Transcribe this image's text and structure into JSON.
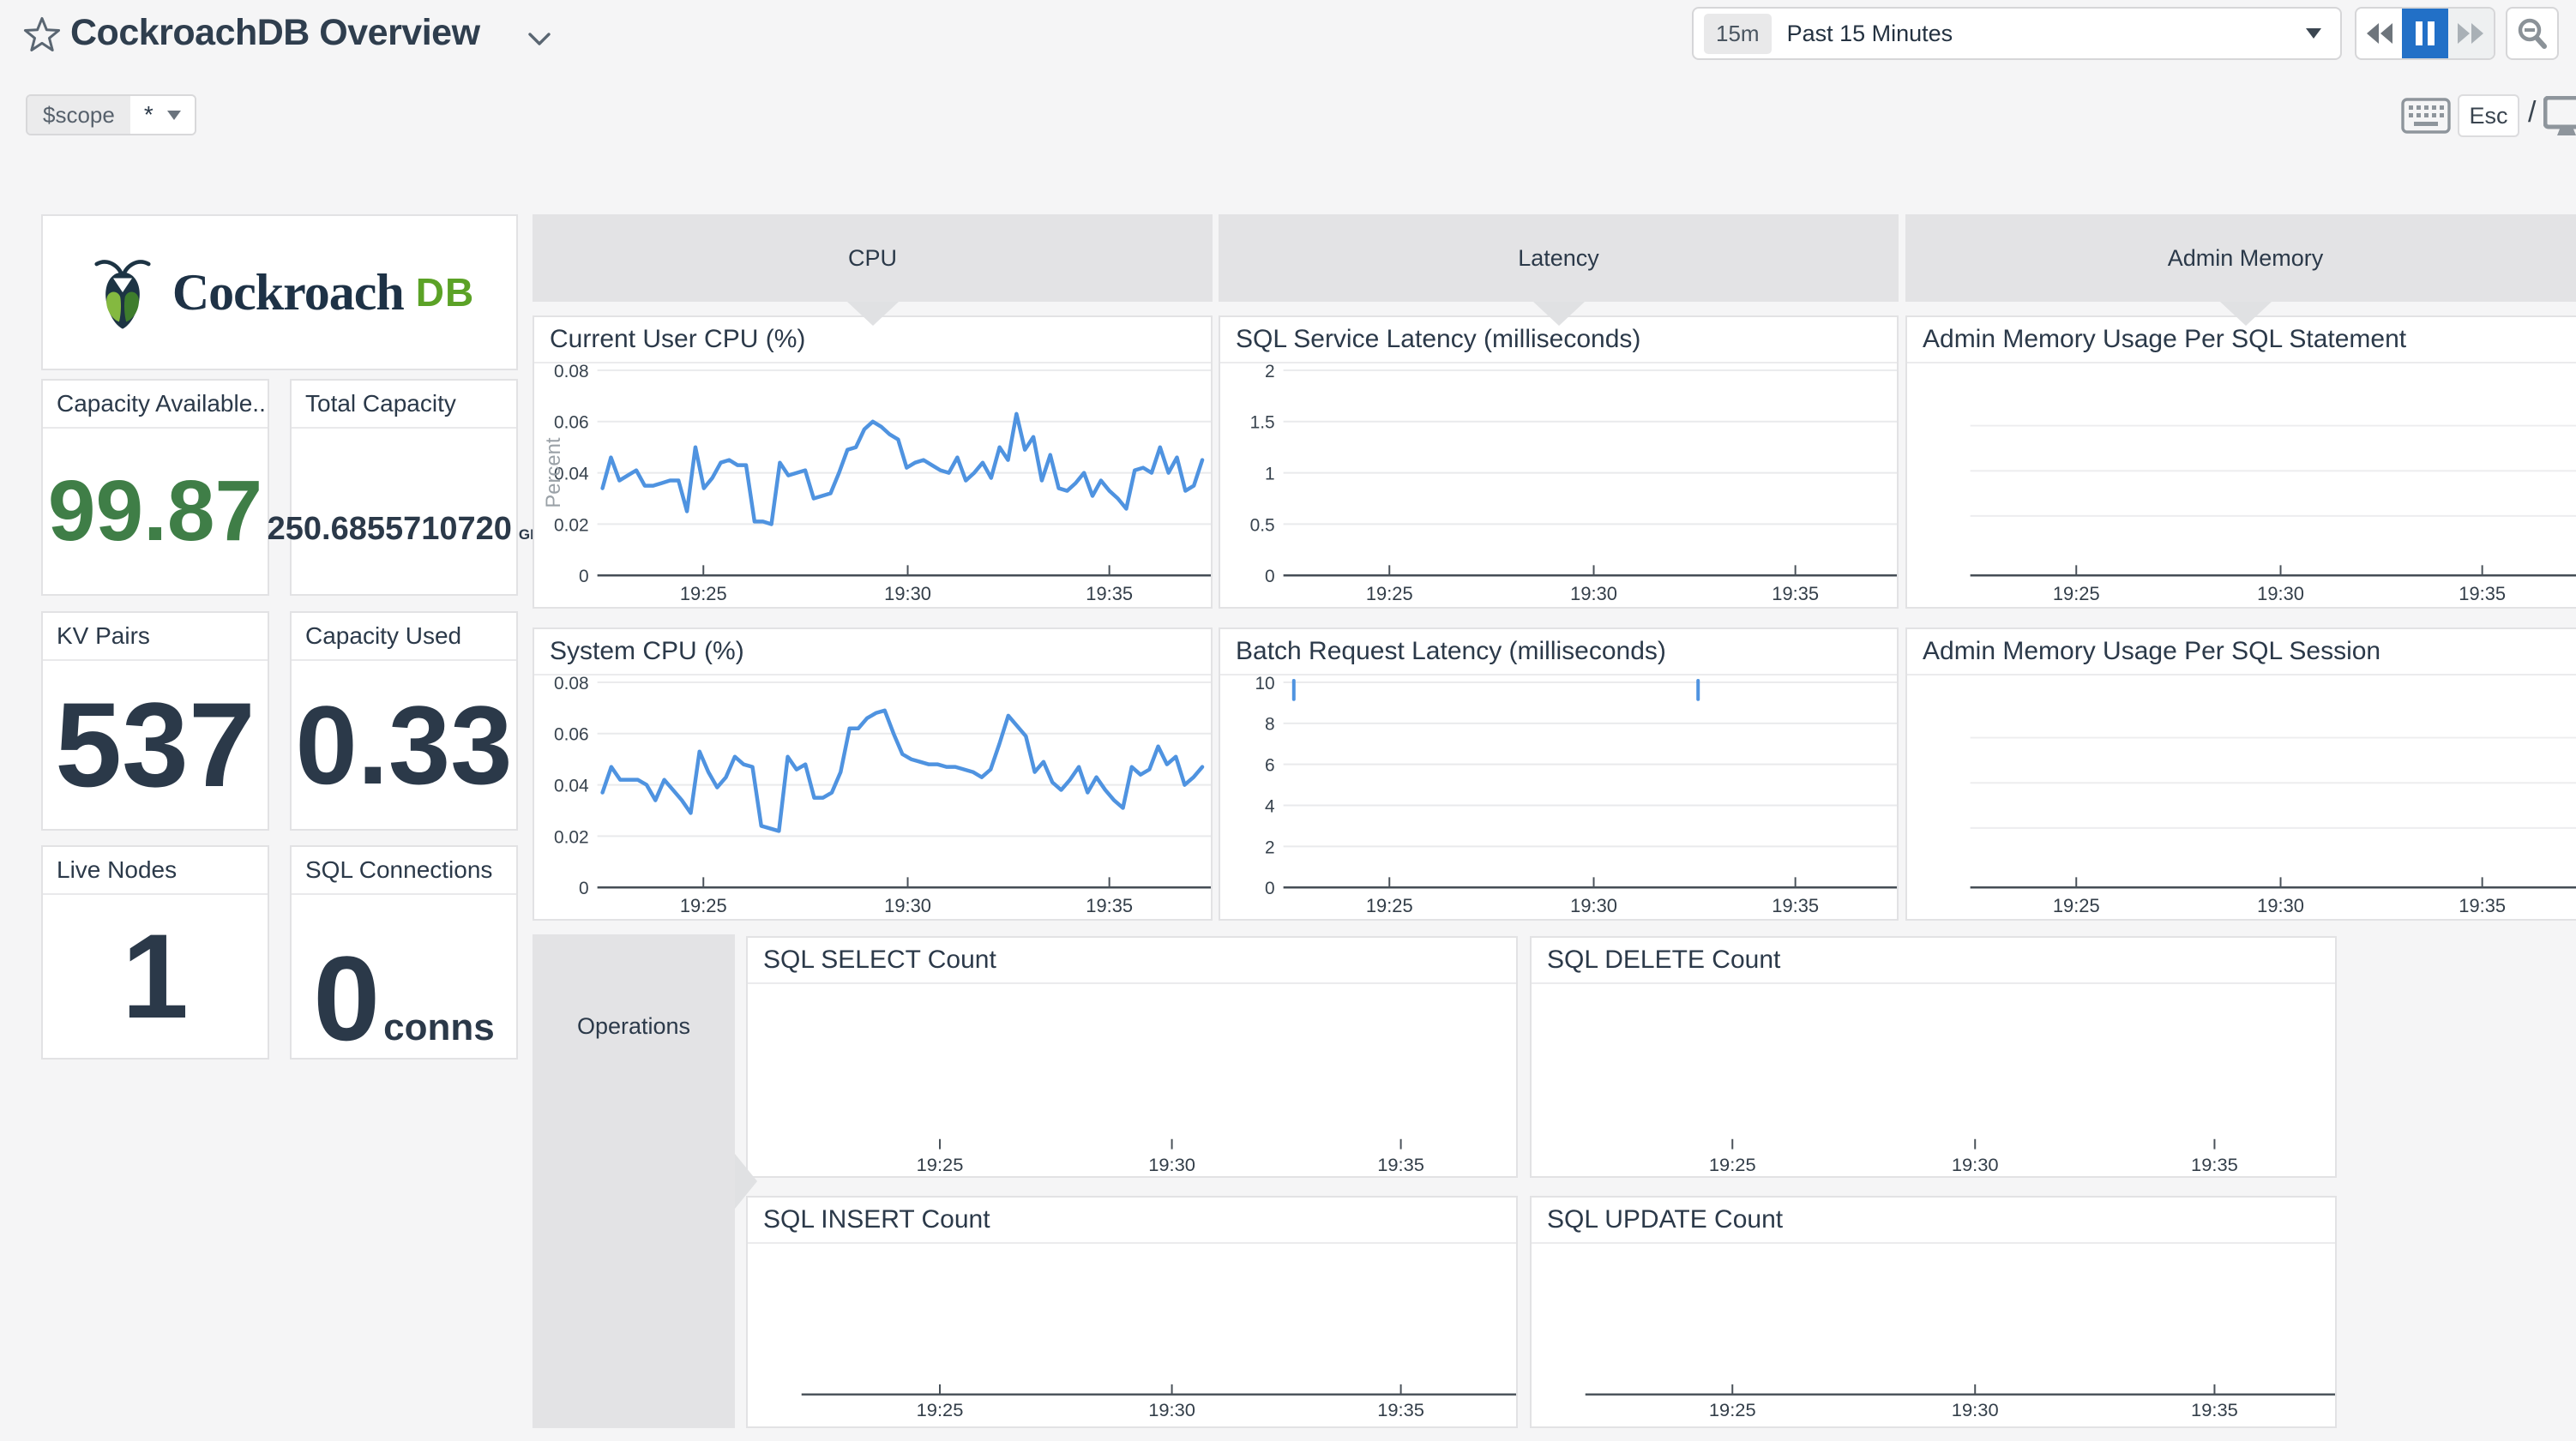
{
  "header": {
    "title": "CockroachDB Overview",
    "time": {
      "badge": "15m",
      "label": "Past 15 Minutes"
    },
    "scope": {
      "key": "$scope",
      "value": "*"
    },
    "esc": "Esc",
    "slash": "/"
  },
  "branding": {
    "word": "Cockroach",
    "suffix": "DB"
  },
  "colors": {
    "accent_blue": "#4f93e0",
    "active_button_blue": "#2270c7",
    "stat_green": "#3f7e47",
    "logo_green": "#5ba226",
    "navy_text": "#2b3949",
    "group_header_gray": "#e3e3e5"
  },
  "groups": {
    "cpu": "CPU",
    "latency": "Latency",
    "admin_memory": "Admin Memory",
    "operations": "Operations"
  },
  "stats": [
    {
      "label": "Capacity Available...",
      "value": "99.87",
      "unit": ""
    },
    {
      "label": "Total Capacity",
      "value": "250.6855710720",
      "unit": "GB"
    },
    {
      "label": "KV Pairs",
      "value": "537",
      "unit": ""
    },
    {
      "label": "Capacity Used",
      "value": "0.33",
      "unit": ""
    },
    {
      "label": "Live Nodes",
      "value": "1",
      "unit": ""
    },
    {
      "label": "SQL Connections",
      "value": "0",
      "unit": "conns"
    }
  ],
  "chart_data": [
    {
      "id": "current-user-cpu",
      "type": "line",
      "title": "Current User CPU (%)",
      "ylabel": "Percent",
      "ylim": [
        0,
        0.08
      ],
      "y_ticks": [
        "0.08",
        "0.06",
        "0.04",
        "0.02",
        "0"
      ],
      "x_ticks": [
        "19:25",
        "19:30",
        "19:35"
      ],
      "grid": true,
      "legend": "none",
      "series": [
        {
          "name": "user-cpu",
          "values": [
            0.034,
            0.046,
            0.037,
            0.039,
            0.041,
            0.035,
            0.035,
            0.036,
            0.037,
            0.037,
            0.025,
            0.05,
            0.034,
            0.038,
            0.044,
            0.045,
            0.043,
            0.043,
            0.021,
            0.021,
            0.02,
            0.044,
            0.039,
            0.04,
            0.041,
            0.03,
            0.031,
            0.032,
            0.04,
            0.049,
            0.05,
            0.057,
            0.06,
            0.058,
            0.055,
            0.053,
            0.042,
            0.044,
            0.045,
            0.043,
            0.041,
            0.04,
            0.046,
            0.037,
            0.04,
            0.044,
            0.038,
            0.05,
            0.045,
            0.063,
            0.049,
            0.054,
            0.037,
            0.047,
            0.034,
            0.033,
            0.036,
            0.04,
            0.031,
            0.037,
            0.033,
            0.03,
            0.026,
            0.041,
            0.042,
            0.04,
            0.05,
            0.04,
            0.046,
            0.033,
            0.035,
            0.045
          ]
        }
      ]
    },
    {
      "id": "system-cpu",
      "type": "line",
      "title": "System CPU (%)",
      "ylim": [
        0,
        0.08
      ],
      "y_ticks": [
        "0.08",
        "0.06",
        "0.04",
        "0.02",
        "0"
      ],
      "x_ticks": [
        "19:25",
        "19:30",
        "19:35"
      ],
      "grid": true,
      "legend": "none",
      "series": [
        {
          "name": "system-cpu",
          "values": [
            0.037,
            0.047,
            0.042,
            0.042,
            0.042,
            0.04,
            0.034,
            0.042,
            0.038,
            0.034,
            0.029,
            0.053,
            0.045,
            0.039,
            0.043,
            0.051,
            0.048,
            0.047,
            0.024,
            0.023,
            0.022,
            0.051,
            0.046,
            0.048,
            0.035,
            0.035,
            0.037,
            0.045,
            0.062,
            0.062,
            0.066,
            0.068,
            0.069,
            0.06,
            0.052,
            0.05,
            0.049,
            0.048,
            0.048,
            0.047,
            0.047,
            0.046,
            0.045,
            0.043,
            0.046,
            0.056,
            0.067,
            0.063,
            0.059,
            0.045,
            0.049,
            0.041,
            0.038,
            0.042,
            0.047,
            0.037,
            0.043,
            0.038,
            0.034,
            0.031,
            0.047,
            0.044,
            0.046,
            0.055,
            0.048,
            0.051,
            0.04,
            0.043,
            0.047
          ]
        }
      ]
    },
    {
      "id": "sql-service-latency",
      "type": "line",
      "title": "SQL Service Latency (milliseconds)",
      "ylim": [
        0,
        2
      ],
      "y_ticks": [
        "2",
        "1.5",
        "1",
        "0.5",
        "0"
      ],
      "x_ticks": [
        "19:25",
        "19:30",
        "19:35"
      ],
      "grid": true,
      "legend": "none",
      "series": []
    },
    {
      "id": "batch-request-latency",
      "type": "line",
      "title": "Batch Request Latency (milliseconds)",
      "ylim": [
        0,
        10
      ],
      "y_ticks": [
        "10",
        "8",
        "6",
        "4",
        "2",
        "0"
      ],
      "x_ticks": [
        "19:25",
        "19:30",
        "19:35"
      ],
      "grid": true,
      "legend": "none",
      "series": [],
      "marks": [
        {
          "x_frac": 0.017,
          "value": 10
        },
        {
          "x_frac": 0.676,
          "value": 10
        }
      ]
    },
    {
      "id": "admin-memory-per-sql-statement",
      "type": "line",
      "title": "Admin Memory Usage Per SQL Statement",
      "y_ticks": [],
      "x_ticks": [
        "19:25",
        "19:30",
        "19:35"
      ],
      "grid": true,
      "legend": "none",
      "series": []
    },
    {
      "id": "admin-memory-per-sql-session",
      "type": "line",
      "title": "Admin Memory Usage Per SQL Session",
      "y_ticks": [],
      "x_ticks": [
        "19:25",
        "19:30",
        "19:35"
      ],
      "grid": true,
      "legend": "none",
      "series": []
    },
    {
      "id": "sql-select-count",
      "type": "line",
      "title": "SQL SELECT Count",
      "y_ticks": [],
      "x_ticks": [
        "19:25",
        "19:30",
        "19:35"
      ],
      "grid": false,
      "legend": "none",
      "series": []
    },
    {
      "id": "sql-delete-count",
      "type": "line",
      "title": "SQL DELETE Count",
      "y_ticks": [],
      "x_ticks": [
        "19:25",
        "19:30",
        "19:35"
      ],
      "grid": false,
      "legend": "none",
      "series": []
    },
    {
      "id": "sql-insert-count",
      "type": "line",
      "title": "SQL INSERT Count",
      "y_ticks": [],
      "x_ticks": [
        "19:25",
        "19:30",
        "19:35"
      ],
      "grid": false,
      "legend": "none",
      "series": []
    },
    {
      "id": "sql-update-count",
      "type": "line",
      "title": "SQL UPDATE Count",
      "y_ticks": [],
      "x_ticks": [
        "19:25",
        "19:30",
        "19:35"
      ],
      "grid": false,
      "legend": "none",
      "series": []
    }
  ]
}
